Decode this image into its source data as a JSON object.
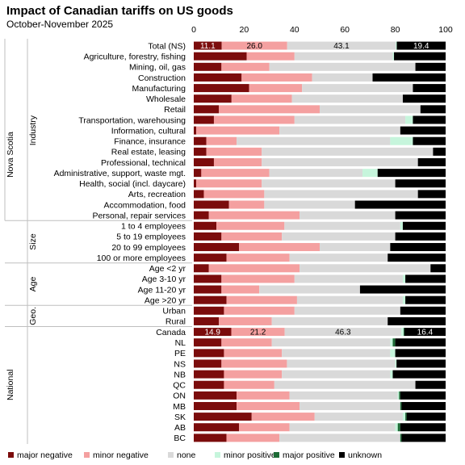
{
  "chart_data": {
    "type": "bar",
    "orientation": "horizontal",
    "stacked": "100%",
    "title": "Impact of Canadian tariffs on US goods",
    "subtitle": "October-November 2025",
    "xlim": [
      0,
      100
    ],
    "x_ticks": [
      0,
      20,
      40,
      60,
      80,
      100
    ],
    "grid": false,
    "legend_position": "bottom",
    "series_names": [
      "major negative",
      "minor negative",
      "none",
      "minor positive",
      "major positive",
      "unknown"
    ],
    "colors": [
      "#7b0c0c",
      "#f4a0a0",
      "#d9d9d9",
      "#c6f5dc",
      "#1d6b36",
      "#000000"
    ],
    "groups": [
      {
        "label": "Nova Scotia",
        "rows": [
          {
            "label": "Total (NS)",
            "values": [
              11.1,
              26.0,
              43.1,
              0.4,
              0.0,
              19.4
            ],
            "data_labels": [
              "11.1",
              "26.0",
              "43.1",
              "",
              "",
              "19.4"
            ]
          },
          {
            "label": "Agriculture, forestry, fishing",
            "values": [
              21,
              19,
              39,
              0.5,
              0,
              20.5
            ]
          },
          {
            "label": "Mining, oil, gas",
            "values": [
              11,
              19,
              58,
              0,
              0,
              12
            ]
          },
          {
            "label": "Construction",
            "values": [
              19,
              28,
              24,
              0,
              0,
              29
            ]
          },
          {
            "label": "Manufacturing",
            "values": [
              22,
              21,
              44,
              0,
              0,
              13
            ]
          },
          {
            "label": "Wholesale",
            "values": [
              15,
              24,
              44,
              0,
              0,
              17
            ]
          },
          {
            "label": "Retail",
            "values": [
              10,
              40,
              40,
              0,
              0,
              10
            ]
          },
          {
            "label": "Transportation, warehousing",
            "values": [
              8,
              32,
              44,
              3,
              0,
              13
            ]
          },
          {
            "label": "Information, cultural",
            "values": [
              1,
              33,
              48,
              0,
              0,
              18
            ]
          },
          {
            "label": "Finance, insurance",
            "values": [
              5,
              12,
              61,
              9,
              0,
              13
            ]
          },
          {
            "label": "Real estate, leasing",
            "values": [
              5,
              22,
              68,
              0,
              0,
              5
            ]
          },
          {
            "label": "Professional, technical",
            "values": [
              8,
              19,
              62,
              0,
              0,
              11
            ]
          },
          {
            "label": "Administrative, support, waste mgt.",
            "values": [
              3,
              27,
              37,
              6,
              0,
              27
            ]
          },
          {
            "label": "Health, social (incl. daycare)",
            "values": [
              1,
              26,
              53,
              0,
              0,
              20
            ]
          },
          {
            "label": "Arts, recreation",
            "values": [
              4,
              24,
              61,
              0,
              0,
              11
            ]
          },
          {
            "label": "Accommodation, food",
            "values": [
              14,
              14,
              36,
              0,
              0,
              36
            ]
          },
          {
            "label": "Personal, repair services",
            "values": [
              6,
              36,
              38,
              0,
              0,
              20
            ]
          }
        ]
      },
      {
        "label": "Size",
        "rows": [
          {
            "label": "1 to 4 employees",
            "values": [
              9,
              27,
              46,
              1,
              0,
              17
            ]
          },
          {
            "label": "5 to 19 employees",
            "values": [
              11,
              24,
              45,
              0,
              0,
              20
            ]
          },
          {
            "label": "20 to 99 employees",
            "values": [
              18,
              32,
              28,
              0,
              0,
              22
            ]
          },
          {
            "label": "100 or more employees",
            "values": [
              13,
              25,
              39,
              0,
              0,
              23
            ]
          }
        ]
      },
      {
        "label": "Age",
        "rows": [
          {
            "label": "Age <2 yr",
            "values": [
              6,
              36,
              52,
              0,
              0,
              6
            ]
          },
          {
            "label": "Age 3-10 yr",
            "values": [
              11,
              29,
              43,
              1,
              0,
              16
            ]
          },
          {
            "label": "Age 11-20 yr",
            "values": [
              11,
              15,
              40,
              0,
              0,
              34
            ]
          },
          {
            "label": "Age >20 yr",
            "values": [
              13,
              28,
              42,
              1,
              0,
              16
            ]
          }
        ]
      },
      {
        "label": "Geo.",
        "rows": [
          {
            "label": "Urban",
            "values": [
              12,
              28,
              42,
              0,
              0,
              18
            ]
          },
          {
            "label": "Rural",
            "values": [
              10,
              21,
              46,
              0,
              0,
              23
            ]
          }
        ]
      },
      {
        "label": "National",
        "rows": [
          {
            "label": "Canada",
            "values": [
              14.9,
              21.2,
              46.3,
              0.9,
              0.3,
              16.4
            ],
            "data_labels": [
              "14.9",
              "21.2",
              "46.3",
              "",
              "",
              "16.4"
            ]
          },
          {
            "label": "NL",
            "values": [
              11,
              20,
              47,
              1,
              1,
              20
            ]
          },
          {
            "label": "PE",
            "values": [
              12,
              23,
              43,
              2,
              0,
              20
            ]
          },
          {
            "label": "NS",
            "values": [
              11,
              26,
              43,
              0.5,
              0,
              19.5
            ]
          },
          {
            "label": "NB",
            "values": [
              12,
              23,
              43,
              1,
              0,
              21
            ]
          },
          {
            "label": "QC",
            "values": [
              12,
              20,
              56,
              0,
              0,
              12
            ]
          },
          {
            "label": "ON",
            "values": [
              17,
              21,
              43,
              0.5,
              0.5,
              18
            ]
          },
          {
            "label": "MB",
            "values": [
              17,
              25,
              40,
              0,
              0.5,
              17.5
            ]
          },
          {
            "label": "SK",
            "values": [
              23,
              25,
              35,
              1,
              0.5,
              15.5
            ]
          },
          {
            "label": "AB",
            "values": [
              18,
              20,
              42,
              1,
              1,
              18
            ]
          },
          {
            "label": "BC",
            "values": [
              13,
              21,
              48,
              0,
              0.5,
              17.5
            ]
          }
        ]
      }
    ]
  }
}
